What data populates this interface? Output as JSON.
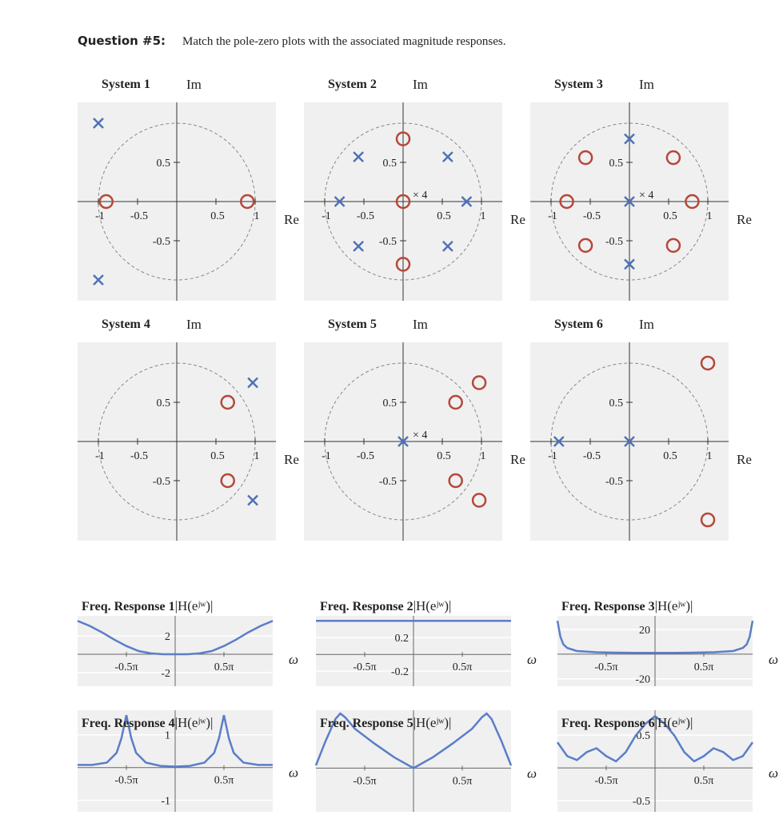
{
  "question": {
    "label": "Question #5:",
    "text": "Match the pole-zero plots with the associated magnitude responses."
  },
  "chart_data": [
    {
      "type": "pole-zero",
      "title": "System 1",
      "xlabel": "Re",
      "ylabel": "Im",
      "xlim": [
        -1.265,
        1.265
      ],
      "ylim": [
        -1.265,
        1.265
      ],
      "xticks": [
        -1,
        -0.5,
        0.5,
        1
      ],
      "yticks": [
        -0.5,
        0.5
      ],
      "series": [
        {
          "marker": "x",
          "color": "#4f72b8",
          "x": [
            -1,
            -1
          ],
          "y": [
            1,
            -1
          ]
        },
        {
          "marker": "o",
          "color": "#b5483a",
          "x": [
            -0.9,
            0.9
          ],
          "y": [
            0,
            0
          ]
        }
      ]
    },
    {
      "type": "pole-zero",
      "title": "System 2",
      "xlabel": "Re",
      "ylabel": "Im",
      "xlim": [
        -1.265,
        1.265
      ],
      "ylim": [
        -1.265,
        1.265
      ],
      "xticks": [
        -1,
        -0.5,
        0.5,
        1
      ],
      "yticks": [
        -0.5,
        0.5
      ],
      "series": [
        {
          "marker": "x",
          "color": "#4f72b8",
          "x": [
            -0.57,
            0.57,
            -0.81,
            0.81,
            -0.57,
            0.57
          ],
          "y": [
            0.57,
            0.57,
            0,
            0,
            -0.57,
            -0.57
          ]
        },
        {
          "marker": "o",
          "color": "#b5483a",
          "x": [
            0,
            0,
            0
          ],
          "y": [
            0.8,
            0,
            -0.8
          ],
          "labels": [
            null,
            "× 4",
            null
          ]
        }
      ]
    },
    {
      "type": "pole-zero",
      "title": "System 3",
      "xlabel": "Re",
      "ylabel": "Im",
      "xlim": [
        -1.265,
        1.265
      ],
      "ylim": [
        -1.265,
        1.265
      ],
      "xticks": [
        -1,
        -0.5,
        0.5,
        1
      ],
      "yticks": [
        -0.5,
        0.5
      ],
      "series": [
        {
          "marker": "x",
          "color": "#4f72b8",
          "x": [
            0,
            0,
            0
          ],
          "y": [
            0.8,
            0,
            -0.8
          ],
          "labels": [
            null,
            "× 4",
            null
          ]
        },
        {
          "marker": "o",
          "color": "#b5483a",
          "x": [
            -0.56,
            0.56,
            -0.8,
            0.8,
            -0.56,
            0.56
          ],
          "y": [
            0.56,
            0.56,
            0,
            0,
            -0.56,
            -0.56
          ]
        }
      ]
    },
    {
      "type": "pole-zero",
      "title": "System 4",
      "xlabel": "Re",
      "ylabel": "Im",
      "xlim": [
        -1.265,
        1.265
      ],
      "ylim": [
        -1.265,
        1.265
      ],
      "xticks": [
        -1,
        -0.5,
        0.5,
        1
      ],
      "yticks": [
        -0.5,
        0.5
      ],
      "series": [
        {
          "marker": "x",
          "color": "#4f72b8",
          "x": [
            0.97,
            0.97
          ],
          "y": [
            0.75,
            -0.75
          ]
        },
        {
          "marker": "o",
          "color": "#b5483a",
          "x": [
            0.65,
            0.65
          ],
          "y": [
            0.5,
            -0.5
          ]
        }
      ]
    },
    {
      "type": "pole-zero",
      "title": "System 5",
      "xlabel": "Re",
      "ylabel": "Im",
      "xlim": [
        -1.265,
        1.265
      ],
      "ylim": [
        -1.265,
        1.265
      ],
      "xticks": [
        -1,
        -0.5,
        0.5,
        1
      ],
      "yticks": [
        -0.5,
        0.5
      ],
      "series": [
        {
          "marker": "x",
          "color": "#4f72b8",
          "x": [
            0
          ],
          "y": [
            0
          ],
          "labels": [
            "× 4"
          ]
        },
        {
          "marker": "o",
          "color": "#b5483a",
          "x": [
            0.67,
            0.97,
            0.67,
            0.97
          ],
          "y": [
            0.5,
            0.75,
            -0.5,
            -0.75
          ]
        }
      ]
    },
    {
      "type": "pole-zero",
      "title": "System 6",
      "xlabel": "Re",
      "ylabel": "Im",
      "xlim": [
        -1.265,
        1.265
      ],
      "ylim": [
        -1.265,
        1.265
      ],
      "xticks": [
        -1,
        -0.5,
        0.5,
        1
      ],
      "yticks": [
        -0.5,
        0.5
      ],
      "series": [
        {
          "marker": "x",
          "color": "#4f72b8",
          "x": [
            -0.9,
            0
          ],
          "y": [
            0,
            0
          ]
        },
        {
          "marker": "o",
          "color": "#b5483a",
          "x": [
            1,
            1
          ],
          "y": [
            1,
            -1
          ]
        }
      ]
    },
    {
      "type": "line",
      "title": "Freq. Response 1",
      "ylabel": "|H(eʲʷ)|",
      "xlabel": "ω",
      "color": "#5a7ec8",
      "grid": true,
      "xlim": [
        -1,
        1
      ],
      "ylim": [
        -3.5,
        4.2
      ],
      "xticks": [
        {
          "value": -0.5,
          "label": "-0.5π"
        },
        {
          "value": 0.5,
          "label": "0.5π"
        }
      ],
      "yticks": [
        -2,
        2
      ],
      "x": [
        -1,
        -0.875,
        -0.75,
        -0.625,
        -0.5,
        -0.375,
        -0.25,
        -0.125,
        0,
        0.125,
        0.25,
        0.375,
        0.5,
        0.625,
        0.75,
        0.875,
        1
      ],
      "values": [
        3.65,
        3.1,
        2.4,
        1.6,
        0.9,
        0.35,
        0.1,
        0,
        0,
        0,
        0.1,
        0.35,
        0.9,
        1.6,
        2.4,
        3.1,
        3.65
      ]
    },
    {
      "type": "line",
      "title": "Freq. Response 2",
      "ylabel": "|H(eʲʷ)|",
      "xlabel": "ω",
      "color": "#5a7ec8",
      "grid": true,
      "xlim": [
        -1,
        1
      ],
      "ylim": [
        -0.38,
        0.46
      ],
      "xticks": [
        {
          "value": -0.5,
          "label": "-0.5π"
        },
        {
          "value": 0.5,
          "label": "0.5π"
        }
      ],
      "yticks": [
        -0.2,
        0.2
      ],
      "x": [
        -1,
        -0.5,
        0,
        0.5,
        1
      ],
      "values": [
        0.4,
        0.4,
        0.4,
        0.4,
        0.4
      ]
    },
    {
      "type": "line",
      "title": "Freq. Response 3",
      "ylabel": "|H(eʲʷ)|",
      "xlabel": "ω",
      "color": "#5a7ec8",
      "grid": true,
      "xlim": [
        -1,
        1
      ],
      "ylim": [
        -26,
        31
      ],
      "xticks": [
        {
          "value": -0.5,
          "label": "-0.5π"
        },
        {
          "value": 0.5,
          "label": "0.5π"
        }
      ],
      "yticks": [
        -20,
        20
      ],
      "x": [
        -1,
        -0.97,
        -0.94,
        -0.9,
        -0.8,
        -0.6,
        -0.4,
        -0.2,
        0,
        0.2,
        0.4,
        0.6,
        0.8,
        0.9,
        0.94,
        0.97,
        1
      ],
      "values": [
        27,
        14,
        8,
        5,
        2.5,
        1.5,
        1.2,
        1,
        1,
        1,
        1.2,
        1.5,
        2.5,
        5,
        8,
        14,
        27
      ]
    },
    {
      "type": "line",
      "title": "Freq. Response 4",
      "ylabel": "|H(eʲʷ)|",
      "xlabel": "ω",
      "color": "#5a7ec8",
      "grid": true,
      "xlim": [
        -1,
        1
      ],
      "ylim": [
        -1.35,
        1.75
      ],
      "xticks": [
        {
          "value": -0.5,
          "label": "-0.5π"
        },
        {
          "value": 0.5,
          "label": "0.5π"
        }
      ],
      "yticks": [
        -1,
        1
      ],
      "x": [
        -1,
        -0.85,
        -0.7,
        -0.6,
        -0.55,
        -0.5,
        -0.45,
        -0.4,
        -0.3,
        -0.15,
        0,
        0.15,
        0.3,
        0.4,
        0.45,
        0.5,
        0.55,
        0.6,
        0.7,
        0.85,
        1
      ],
      "values": [
        0.08,
        0.08,
        0.15,
        0.45,
        0.9,
        1.6,
        0.9,
        0.45,
        0.15,
        0.05,
        0.03,
        0.05,
        0.15,
        0.45,
        0.9,
        1.6,
        0.9,
        0.45,
        0.15,
        0.08,
        0.08
      ]
    },
    {
      "type": "line",
      "title": "Freq. Response 5",
      "ylabel": "|H(eʲʷ)|",
      "xlabel": "ω",
      "color": "#5a7ec8",
      "grid": true,
      "xlim": [
        -1,
        1
      ],
      "ylim": [
        -0.8,
        1.06
      ],
      "xticks": [
        {
          "value": -0.5,
          "label": "-0.5π"
        },
        {
          "value": 0.5,
          "label": "0.5π"
        }
      ],
      "yticks": [],
      "x": [
        -1,
        -0.9,
        -0.8,
        -0.75,
        -0.7,
        -0.6,
        -0.4,
        -0.2,
        0,
        0.2,
        0.4,
        0.6,
        0.7,
        0.75,
        0.8,
        0.9,
        1
      ],
      "values": [
        0.05,
        0.5,
        0.9,
        1,
        0.93,
        0.72,
        0.45,
        0.2,
        0,
        0.2,
        0.45,
        0.72,
        0.93,
        1,
        0.9,
        0.5,
        0.05
      ]
    },
    {
      "type": "line",
      "title": "Freq. Response 6",
      "ylabel": "|H(eʲʷ)|",
      "xlabel": "ω",
      "color": "#5a7ec8",
      "grid": true,
      "xlim": [
        -1,
        1
      ],
      "ylim": [
        -0.67,
        0.88
      ],
      "xticks": [
        {
          "value": -0.5,
          "label": "-0.5π"
        },
        {
          "value": 0.5,
          "label": "0.5π"
        }
      ],
      "yticks": [
        -0.5,
        0.5
      ],
      "x": [
        -1,
        -0.9,
        -0.8,
        -0.7,
        -0.6,
        -0.5,
        -0.4,
        -0.3,
        -0.2,
        -0.1,
        0,
        0.1,
        0.2,
        0.3,
        0.4,
        0.5,
        0.6,
        0.7,
        0.8,
        0.9,
        1
      ],
      "values": [
        0.39,
        0.18,
        0.12,
        0.24,
        0.3,
        0.18,
        0.1,
        0.24,
        0.49,
        0.67,
        0.79,
        0.67,
        0.49,
        0.24,
        0.1,
        0.18,
        0.3,
        0.24,
        0.12,
        0.18,
        0.39
      ]
    }
  ]
}
